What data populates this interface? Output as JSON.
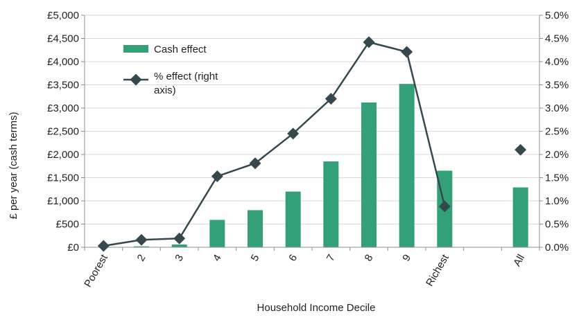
{
  "chart_data": {
    "type": "bar",
    "xlabel": "Household Income Decile",
    "ylabel": "£ per year (cash terms)",
    "categories": [
      "Poorest",
      "2",
      "3",
      "4",
      "5",
      "6",
      "7",
      "8",
      "9",
      "Richest",
      "",
      "All"
    ],
    "y_ticks": [
      "£0",
      "£500",
      "£1,000",
      "£1,500",
      "£2,000",
      "£2,500",
      "£3,000",
      "£3,500",
      "£4,000",
      "£4,500",
      "£5,000"
    ],
    "y2_ticks": [
      "0.0%",
      "0.5%",
      "1.0%",
      "1.5%",
      "2.0%",
      "2.5%",
      "3.0%",
      "3.5%",
      "4.0%",
      "4.5%",
      "5.0%"
    ],
    "ylim": [
      0,
      5000
    ],
    "y2lim": [
      0,
      5.0
    ],
    "grid": true,
    "legend_position": "top-left",
    "series": [
      {
        "name": "Cash effect",
        "type": "bar",
        "axis": "left",
        "color": "#33a178",
        "values": [
          0,
          20,
          60,
          590,
          800,
          1200,
          1850,
          3120,
          3520,
          1650,
          null,
          1290
        ]
      },
      {
        "name": "% effect (right axis)",
        "type": "line",
        "axis": "right",
        "color": "#34484f",
        "values": [
          0.03,
          0.16,
          0.19,
          1.53,
          1.81,
          2.45,
          3.2,
          4.42,
          4.21,
          0.88,
          null,
          2.1
        ]
      }
    ]
  }
}
